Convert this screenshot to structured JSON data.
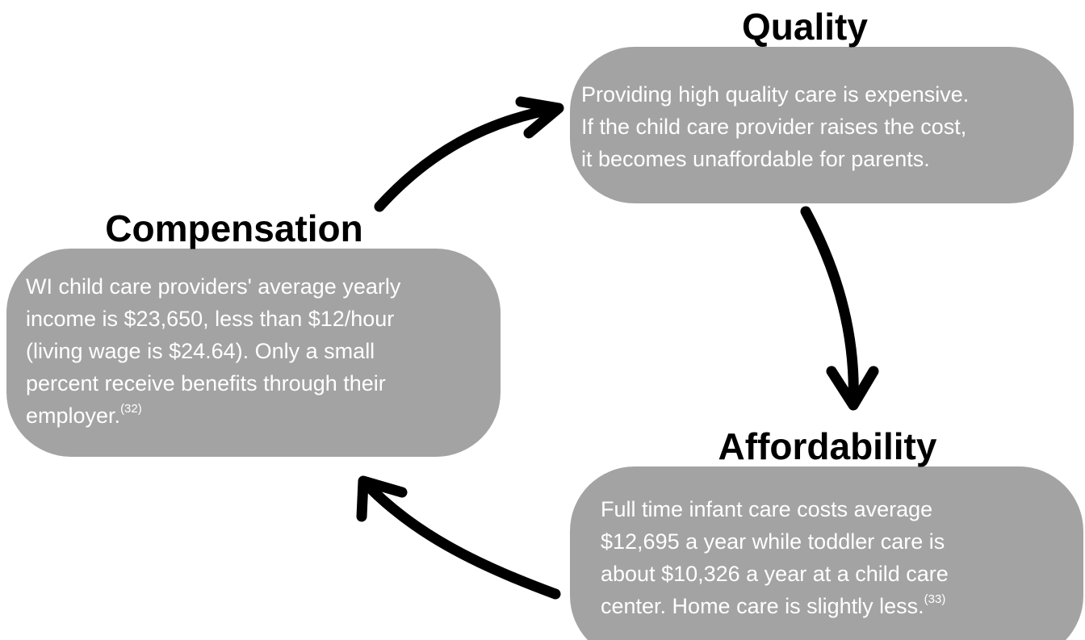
{
  "nodes": [
    {
      "title": "Quality",
      "lines": [
        "Providing high quality care is expensive.",
        "If the child care provider raises the cost,",
        "it becomes unaffordable for parents."
      ]
    },
    {
      "title": "Affordability",
      "lines": [
        "Full time infant care costs average",
        "$12,695 a year while toddler care is",
        "about $10,326 a year at a child care",
        "center. Home care is slightly less."
      ],
      "citation": "(33)"
    },
    {
      "title": "Compensation",
      "lines": [
        "WI child care providers' average yearly",
        "income is $23,650, less than $12/hour",
        "(living wage is $24.64). Only a small",
        "percent receive benefits through their",
        "employer."
      ],
      "citation": "(32)"
    }
  ]
}
